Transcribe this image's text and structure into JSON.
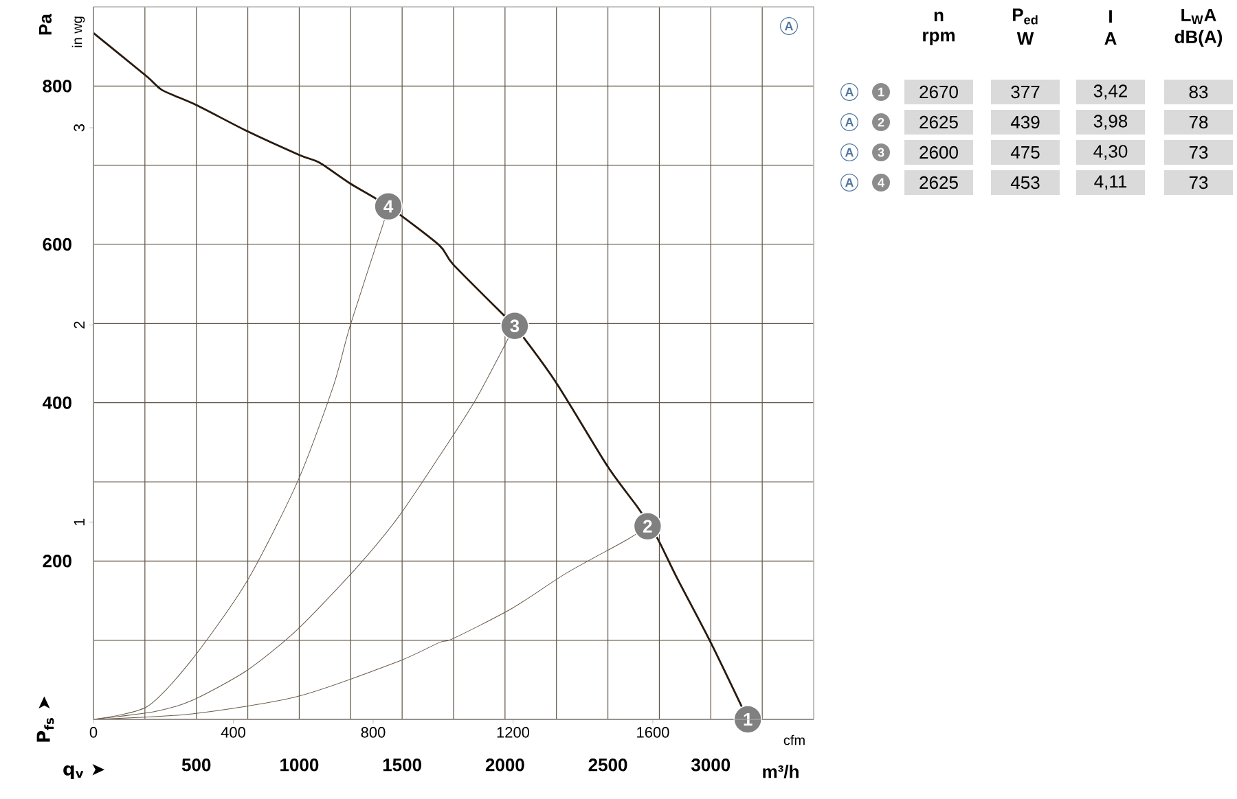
{
  "chart_data": {
    "type": "line",
    "xlabel": "q$_{v}$ ➤",
    "ylabel": "P$_{fs}$ ➤",
    "y2label": "in wg",
    "x2label": "cfm",
    "xlim": [
      0,
      3500
    ],
    "xticks": [
      {
        "value": 250,
        "label": null
      },
      500,
      {
        "value": 750,
        "label": null
      },
      1000,
      {
        "value": 1250,
        "label": null
      },
      1500,
      {
        "value": 1750,
        "label": null
      },
      2000,
      {
        "value": 2250,
        "label": null
      },
      2500,
      {
        "value": 2750,
        "label": null
      },
      3000,
      {
        "value": 3250,
        "label": null
      }
    ],
    "ylim": [
      0,
      900
    ],
    "yticks": [
      {
        "value": 100,
        "label": null
      },
      200,
      {
        "value": 300,
        "label": null
      },
      400,
      {
        "value": 500,
        "label": null
      },
      600,
      {
        "value": 700,
        "label": null
      },
      800
    ],
    "x2lim": [
      0,
      2060
    ],
    "x2ticks": [
      0,
      400,
      800,
      1200,
      1600
    ],
    "y2lim": [
      0,
      3.613
    ],
    "y2ticks": [
      1,
      2,
      3
    ],
    "grid": true,
    "series": [
      {
        "color": "#2a1a0e",
        "x": [
          0,
          260,
          333,
          500,
          747,
          1000,
          1100,
          1247,
          1433,
          1680,
          1747,
          2000,
          2047,
          2247,
          2500,
          2647,
          2740,
          2833,
          3000,
          3180
        ],
        "values": [
          867,
          812,
          795,
          776,
          743,
          713,
          703,
          677,
          648,
          599,
          575,
          509,
          497,
          426,
          319,
          267,
          229,
          180,
          97,
          0
        ]
      },
      {
        "color": "#6a5a4a",
        "x": [
          0,
          260,
          480,
          747,
          993,
          1167,
          1247,
          1413,
          1433
        ],
        "values": [
          0,
          16,
          76,
          175,
          301,
          422,
          497,
          630,
          648
        ]
      },
      {
        "color": "#6a5a4a",
        "x": [
          0,
          300,
          480,
          747,
          993,
          1280,
          1480,
          1680,
          1860,
          2047
        ],
        "values": [
          0,
          10,
          24,
          62,
          114,
          192,
          255,
          332,
          405,
          497
        ]
      },
      {
        "color": "#6a5a4a",
        "x": [
          0,
          480,
          993,
          1480,
          1680,
          1747,
          2033,
          2300,
          2593,
          2693
        ],
        "values": [
          0,
          7,
          29,
          73,
          97,
          102,
          140,
          185,
          227,
          244
        ]
      },
      {
        "type": "scatter",
        "color": "#808080",
        "marker": "circle",
        "x": [
          3180,
          2693,
          2047,
          1433
        ],
        "values": [
          0,
          244,
          497,
          648
        ]
      }
    ],
    "annotations": [
      "Pa",
      "m³/h",
      "A",
      "n",
      "rpm",
      "P$_{ed}$",
      "W",
      "I",
      "A",
      "L$_{W}$A",
      "dB(A)",
      "A",
      "1",
      "2670",
      "377",
      "3,42",
      "83",
      "A",
      "2",
      "2625",
      "439",
      "3,98",
      "78",
      "A",
      "3",
      "2600",
      "475",
      "4,30",
      "73",
      "A",
      "4",
      "2625",
      "453",
      "4,11",
      "73",
      {
        "text": "1",
        "x": 3180,
        "y": 0
      },
      {
        "text": "2",
        "x": 2693,
        "y": 244
      },
      {
        "text": "3",
        "x": 2047,
        "y": 497
      },
      {
        "text": "4",
        "x": 1433,
        "y": 648
      }
    ]
  }
}
